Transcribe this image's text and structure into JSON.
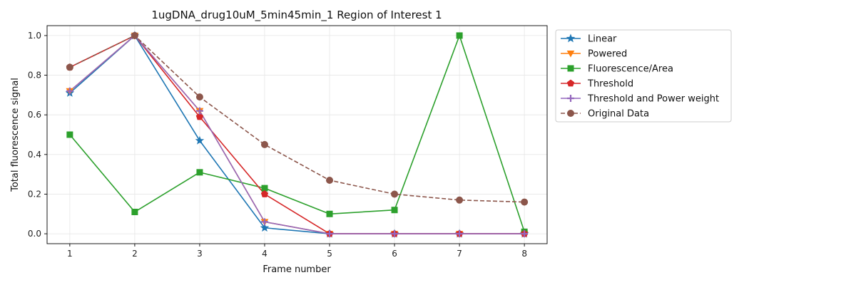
{
  "chart_data": {
    "type": "line",
    "title": "1ugDNA_drug10uM_5min45min_1 Region of Interest 1",
    "xlabel": "Frame number",
    "ylabel": "Total fluorescence signal",
    "xlim": [
      0.65,
      8.35
    ],
    "ylim": [
      -0.05,
      1.05
    ],
    "x": [
      1,
      2,
      3,
      4,
      5,
      6,
      7,
      8
    ],
    "x_ticks": [
      "1",
      "2",
      "3",
      "4",
      "5",
      "6",
      "7",
      "8"
    ],
    "y_ticks": [
      0.0,
      0.2,
      0.4,
      0.6,
      0.8,
      1.0
    ],
    "y_tick_labels": [
      "0.0",
      "0.2",
      "0.4",
      "0.6",
      "0.8",
      "1.0"
    ],
    "grid": true,
    "legend_position": "outside-right",
    "series": [
      {
        "name": "Linear",
        "color": "#1f77b4",
        "marker": "star",
        "dash": "solid",
        "values": [
          0.71,
          1.0,
          0.47,
          0.03,
          0.0,
          0.0,
          0.0,
          0.0
        ]
      },
      {
        "name": "Powered",
        "color": "#ff7f0e",
        "marker": "triangle-down",
        "dash": "solid",
        "values": [
          0.72,
          1.0,
          0.62,
          0.06,
          0.0,
          0.0,
          0.0,
          0.0
        ]
      },
      {
        "name": "Fluorescence/Area",
        "color": "#2ca02c",
        "marker": "square",
        "dash": "solid",
        "values": [
          0.5,
          0.11,
          0.31,
          0.23,
          0.1,
          0.12,
          1.0,
          0.01
        ]
      },
      {
        "name": "Threshold",
        "color": "#d62728",
        "marker": "pentagon",
        "dash": "solid",
        "values": [
          0.84,
          1.0,
          0.59,
          0.2,
          0.0,
          0.0,
          0.0,
          0.0
        ]
      },
      {
        "name": "Threshold and Power weight",
        "color": "#9467bd",
        "marker": "plus",
        "dash": "solid",
        "values": [
          0.72,
          1.0,
          0.62,
          0.06,
          0.0,
          0.0,
          0.0,
          0.0
        ]
      },
      {
        "name": "Original Data",
        "color": "#8c564b",
        "marker": "circle",
        "dash": "dashed",
        "values": [
          0.84,
          1.0,
          0.69,
          0.45,
          0.27,
          0.2,
          0.17,
          0.16
        ]
      }
    ]
  }
}
